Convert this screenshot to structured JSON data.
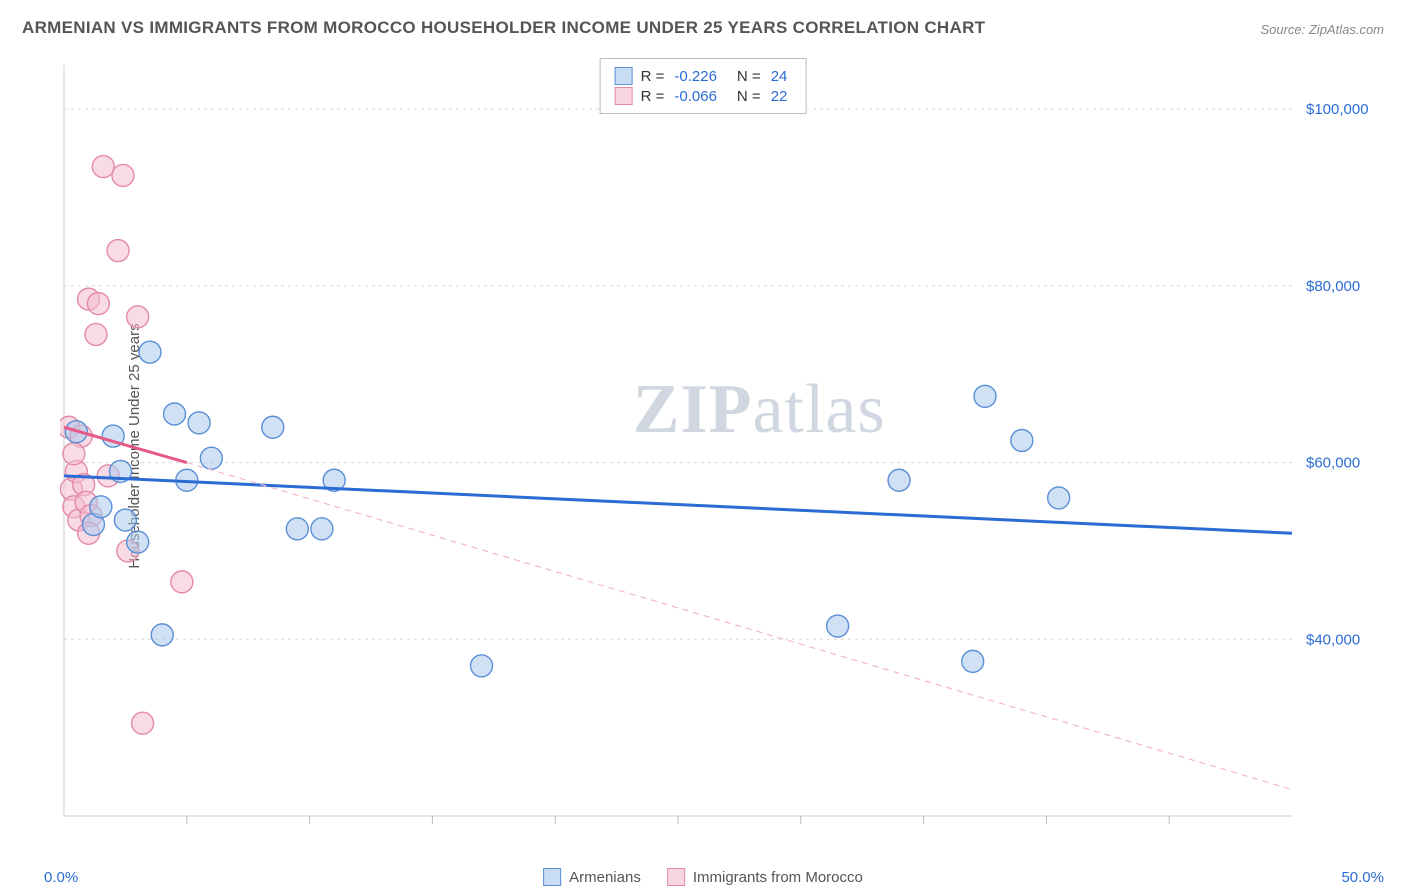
{
  "title": "ARMENIAN VS IMMIGRANTS FROM MOROCCO HOUSEHOLDER INCOME UNDER 25 YEARS CORRELATION CHART",
  "source": "Source: ZipAtlas.com",
  "y_axis_label": "Householder Income Under 25 years",
  "watermark_bold": "ZIP",
  "watermark_rest": "atlas",
  "x_axis": {
    "min_label": "0.0%",
    "max_label": "50.0%",
    "xmin": 0,
    "xmax": 50
  },
  "y_axis": {
    "ymin": 20000,
    "ymax": 105000,
    "ticks": [
      {
        "v": 40000,
        "label": "$40,000"
      },
      {
        "v": 60000,
        "label": "$60,000"
      },
      {
        "v": 80000,
        "label": "$80,000"
      },
      {
        "v": 100000,
        "label": "$100,000"
      }
    ]
  },
  "grid_color": "#d7d7d7",
  "tick_color": "#bcbcbc",
  "axis_color": "#cfcfcf",
  "ytick_label_color": "#2b6cd4",
  "background": "#ffffff",
  "legend_top": {
    "rows": [
      {
        "swatch_fill": "#c9ddf5",
        "swatch_border": "#5b8fd6",
        "r_label": "R =",
        "r_value": "-0.226",
        "n_label": "N =",
        "n_value": "24"
      },
      {
        "swatch_fill": "#f7d6e0",
        "swatch_border": "#e48aa6",
        "r_label": "R =",
        "r_value": "-0.066",
        "n_label": "N =",
        "n_value": "22"
      }
    ]
  },
  "legend_bottom": {
    "items": [
      {
        "swatch_fill": "#c9ddf5",
        "swatch_border": "#5b8fd6",
        "label": "Armenians"
      },
      {
        "swatch_fill": "#f7d6e0",
        "swatch_border": "#e48aa6",
        "label": "Immigrants from Morocco"
      }
    ]
  },
  "series": [
    {
      "name": "Armenians",
      "type": "scatter",
      "marker": "circle",
      "marker_r": 11,
      "fill": "rgba(170,200,238,0.55)",
      "stroke": "#5b8fd6",
      "stroke_width": 1.4,
      "regression": {
        "stroke": "#2b6cd4",
        "width": 3,
        "dash": "none",
        "x1": 0,
        "y1": 58500,
        "x2": 50,
        "y2": 52000
      },
      "points": [
        {
          "x": 0.5,
          "y": 63500
        },
        {
          "x": 1.2,
          "y": 53000
        },
        {
          "x": 1.5,
          "y": 55000
        },
        {
          "x": 2.0,
          "y": 63000
        },
        {
          "x": 2.5,
          "y": 53500
        },
        {
          "x": 3.0,
          "y": 51000
        },
        {
          "x": 3.5,
          "y": 72500
        },
        {
          "x": 4.0,
          "y": 40500
        },
        {
          "x": 4.5,
          "y": 65500
        },
        {
          "x": 5.0,
          "y": 58000
        },
        {
          "x": 5.5,
          "y": 64500
        },
        {
          "x": 6.0,
          "y": 60500
        },
        {
          "x": 8.5,
          "y": 64000
        },
        {
          "x": 9.5,
          "y": 52500
        },
        {
          "x": 10.5,
          "y": 52500
        },
        {
          "x": 11.0,
          "y": 58000
        },
        {
          "x": 17.0,
          "y": 37000
        },
        {
          "x": 31.5,
          "y": 41500
        },
        {
          "x": 34.0,
          "y": 58000
        },
        {
          "x": 37.0,
          "y": 37500
        },
        {
          "x": 37.5,
          "y": 67500
        },
        {
          "x": 39.0,
          "y": 62500
        },
        {
          "x": 40.5,
          "y": 56000
        },
        {
          "x": 2.3,
          "y": 59000
        }
      ]
    },
    {
      "name": "Immigrants from Morocco",
      "type": "scatter",
      "marker": "circle",
      "marker_r": 11,
      "fill": "rgba(244,190,208,0.55)",
      "stroke": "#e48aa6",
      "stroke_width": 1.4,
      "regression": {
        "stroke": "#e65a88",
        "width": 3,
        "dash": "none",
        "x1": 0,
        "y1": 64000,
        "x2": 5,
        "y2": 60000
      },
      "regression_extrapolate": {
        "stroke": "#f2b7c9",
        "width": 1.2,
        "dash": "6 5",
        "x1": 5,
        "y1": 60000,
        "x2": 50,
        "y2": 23000
      },
      "points": [
        {
          "x": 0.2,
          "y": 64000
        },
        {
          "x": 0.3,
          "y": 57000
        },
        {
          "x": 0.4,
          "y": 55000
        },
        {
          "x": 0.5,
          "y": 59000
        },
        {
          "x": 0.6,
          "y": 53500
        },
        {
          "x": 0.7,
          "y": 63000
        },
        {
          "x": 0.8,
          "y": 57500
        },
        {
          "x": 0.9,
          "y": 55500
        },
        {
          "x": 1.0,
          "y": 78500
        },
        {
          "x": 1.1,
          "y": 54000
        },
        {
          "x": 1.3,
          "y": 74500
        },
        {
          "x": 1.4,
          "y": 78000
        },
        {
          "x": 1.6,
          "y": 93500
        },
        {
          "x": 1.8,
          "y": 58500
        },
        {
          "x": 2.2,
          "y": 84000
        },
        {
          "x": 2.4,
          "y": 92500
        },
        {
          "x": 2.6,
          "y": 50000
        },
        {
          "x": 3.0,
          "y": 76500
        },
        {
          "x": 3.2,
          "y": 30500
        },
        {
          "x": 4.8,
          "y": 46500
        },
        {
          "x": 0.4,
          "y": 61000
        },
        {
          "x": 1.0,
          "y": 52000
        }
      ]
    }
  ],
  "x_minor_ticks": [
    5,
    10,
    15,
    20,
    25,
    30,
    35,
    40,
    45
  ]
}
